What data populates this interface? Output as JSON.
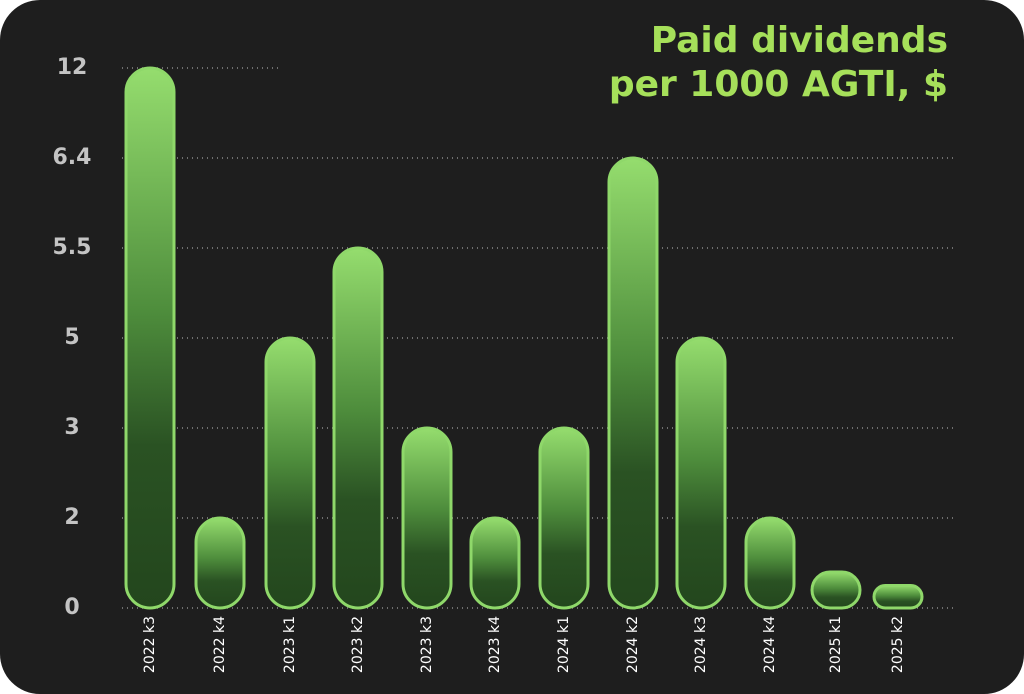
{
  "chart_data": {
    "type": "bar",
    "title": [
      "Paid dividends",
      "per 1000 AGTI, $"
    ],
    "categories": [
      "2022 k3",
      "2022 k4",
      "2023 k1",
      "2023 k2",
      "2023 k3",
      "2023 k4",
      "2024 k1",
      "2024 k2",
      "2024 k3",
      "2024 k4",
      "2025 k1",
      "2025 k2"
    ],
    "values": [
      12,
      2,
      5,
      5.5,
      3,
      2,
      3,
      6.4,
      5,
      2,
      0.8,
      0.5
    ],
    "color": "#8fd86a",
    "ylim": [
      0,
      12
    ],
    "yticks": [
      0,
      2,
      3,
      5,
      5.5,
      6.4,
      12
    ],
    "grid": true
  }
}
